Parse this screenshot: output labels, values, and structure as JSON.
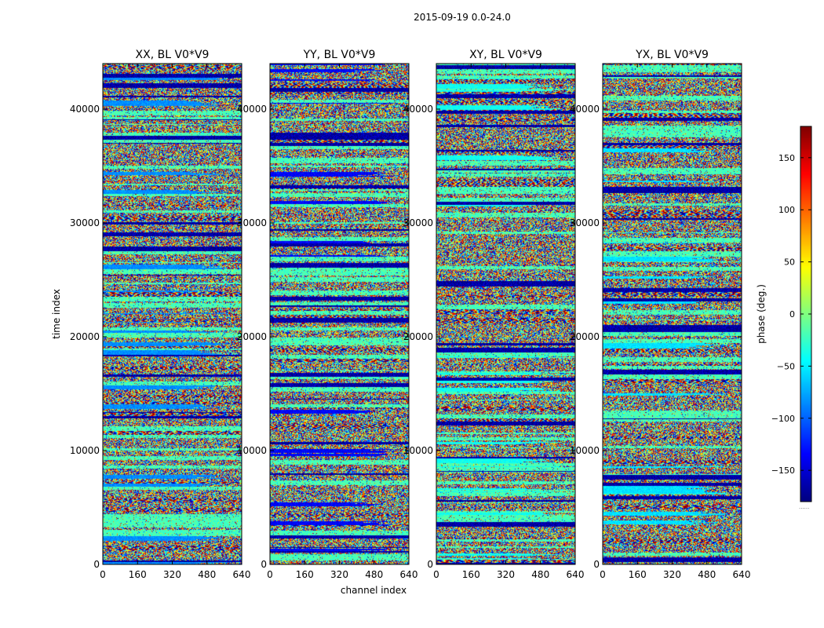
{
  "chart_data": {
    "type": "heatmap",
    "title": "2015-09-19 0.0-24.0",
    "xlabel": "channel index",
    "ylabel": "time index",
    "xlim": [
      0,
      640
    ],
    "ylim": [
      0,
      44000
    ],
    "xticks": [
      0,
      160,
      320,
      480,
      640
    ],
    "yticks": [
      0,
      10000,
      20000,
      30000,
      40000
    ],
    "panels": [
      {
        "title": "XX, BL V0*V9",
        "id": "xx"
      },
      {
        "title": "YY, BL V0*V9",
        "id": "yy"
      },
      {
        "title": "XY, BL V0*V9",
        "id": "xy"
      },
      {
        "title": "YX, BL V0*V9",
        "id": "yx"
      }
    ],
    "colorbar": {
      "label": "phase (deg.)",
      "range": [
        -180,
        180
      ],
      "colormap": "jet",
      "ticks": [
        -150,
        -100,
        -50,
        0,
        50,
        100,
        150
      ],
      "tick_labels": [
        "−150",
        "−100",
        "−50",
        "0",
        "50",
        "100",
        "150"
      ],
      "footnote": "......"
    },
    "tick_labels": {
      "x": [
        "0",
        "160",
        "320",
        "480",
        "640"
      ],
      "y": [
        "0",
        "10000",
        "20000",
        "30000",
        "40000"
      ]
    }
  }
}
